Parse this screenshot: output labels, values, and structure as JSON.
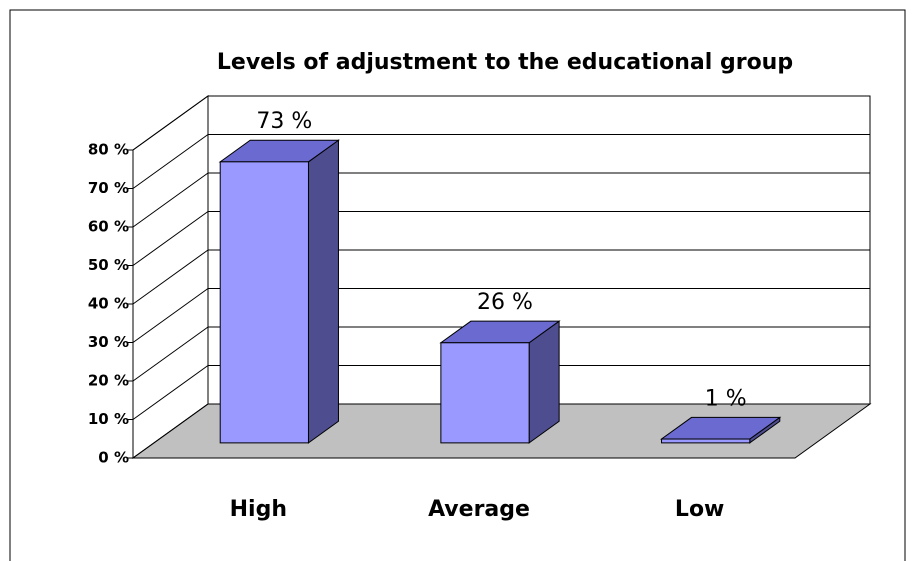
{
  "chart_data": {
    "type": "bar3d",
    "title": "Levels of adjustment to the educational group",
    "categories": [
      "High",
      "Average",
      "Low"
    ],
    "values": [
      73,
      26,
      1
    ],
    "value_labels": [
      "73 %",
      "26 %",
      "1 %"
    ],
    "color": "#9999ff",
    "ylim": [
      0,
      80
    ],
    "yticks": [
      {
        "value": 0,
        "label": "0 %"
      },
      {
        "value": 10,
        "label": "10 %"
      },
      {
        "value": 20,
        "label": "20 %"
      },
      {
        "value": 30,
        "label": "30 %"
      },
      {
        "value": 40,
        "label": "40 %"
      },
      {
        "value": 50,
        "label": "50 %"
      },
      {
        "value": 60,
        "label": "60 %"
      },
      {
        "value": 70,
        "label": "70 %"
      },
      {
        "value": 80,
        "label": "80 %"
      }
    ],
    "grid": true
  }
}
